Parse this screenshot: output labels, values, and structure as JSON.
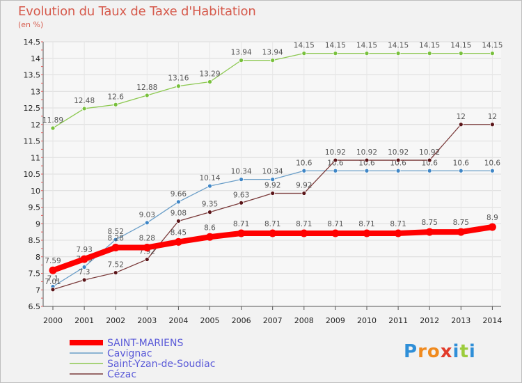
{
  "title": "Evolution du Taux de Taxe d'Habitation",
  "unit": "(en %)",
  "logo": {
    "text": "Proxiti",
    "letters": [
      "P",
      "r",
      "o",
      "x",
      "i",
      "t",
      "i"
    ],
    "colors": [
      "#2f8fd8",
      "#f08a1e",
      "#f08a1e",
      "#e23b2a",
      "#2f8fd8",
      "#9ccc3c",
      "#2f8fd8"
    ]
  },
  "chart_data": {
    "type": "line",
    "title": "Evolution du Taux de Taxe d'Habitation",
    "ylabel": "(en %)",
    "xlabel": "",
    "x": [
      "2000",
      "2001",
      "2002",
      "2003",
      "2004",
      "2005",
      "2006",
      "2007",
      "2008",
      "2009",
      "2010",
      "2011",
      "2012",
      "2013",
      "2014"
    ],
    "ylim": [
      6.5,
      14.5
    ],
    "yticks": [
      "6.5",
      "7",
      "7.5",
      "8",
      "8.5",
      "9",
      "9.5",
      "10",
      "10.5",
      "11",
      "11.5",
      "12",
      "12.5",
      "13",
      "13.5",
      "14",
      "14.5"
    ],
    "grid": true,
    "legend_position": "bottom-left",
    "series": [
      {
        "name": "Saint-Yzan-de-Soudiac",
        "color": "#8cc850",
        "marker": "#78c03c",
        "width": 1.3,
        "values": [
          11.89,
          12.48,
          12.6,
          12.88,
          13.16,
          13.29,
          13.94,
          13.94,
          14.15,
          14.15,
          14.15,
          14.15,
          14.15,
          14.15,
          14.15
        ],
        "labels": [
          "11.89",
          "12.48",
          "12.6",
          "12.88",
          "13.16",
          "13.29",
          "13.94",
          "13.94",
          "14.15",
          "14.15",
          "14.15",
          "14.15",
          "14.15",
          "14.15",
          "14.15"
        ]
      },
      {
        "name": "Cavignac",
        "color": "#6a9ec8",
        "marker": "#3f86c6",
        "width": 1.3,
        "values": [
          7.1,
          7.69,
          8.52,
          9.03,
          9.66,
          10.14,
          10.34,
          10.34,
          10.6,
          10.6,
          10.6,
          10.6,
          10.6,
          10.6,
          10.6
        ],
        "labels": [
          "7.1",
          "7.69",
          "8.52",
          "9.03",
          "9.66",
          "10.14",
          "10.34",
          "10.34",
          "10.6",
          "10.6",
          "10.6",
          "10.6",
          "10.6",
          "10.6",
          "10.6"
        ]
      },
      {
        "name": "Cézac",
        "color": "#7a3a3a",
        "marker": "#5a1418",
        "width": 1.3,
        "values": [
          7.01,
          7.3,
          7.52,
          7.92,
          9.08,
          9.35,
          9.63,
          9.92,
          9.92,
          10.92,
          10.92,
          10.92,
          10.92,
          12,
          12
        ],
        "labels": [
          "7.01",
          "7.3",
          "7.52",
          "7.92",
          "9.08",
          "9.35",
          "9.63",
          "9.92",
          "9.92",
          "10.92",
          "10.92",
          "10.92",
          "10.92",
          "12",
          "12"
        ]
      },
      {
        "name": "SAINT-MARIENS",
        "color": "#ff0000",
        "marker": "#ff0000",
        "width": 8,
        "values": [
          7.59,
          7.93,
          8.28,
          8.28,
          8.45,
          8.6,
          8.71,
          8.71,
          8.71,
          8.71,
          8.71,
          8.71,
          8.75,
          8.75,
          8.9
        ],
        "labels": [
          "7.59",
          "7.93",
          "8.28",
          "8.28",
          "8.45",
          "8.6",
          "8.71",
          "8.71",
          "8.71",
          "8.71",
          "8.71",
          "8.71",
          "8.75",
          "8.75",
          "8.9"
        ]
      }
    ],
    "legend": [
      {
        "name": "SAINT-MARIENS",
        "color": "#ff0000",
        "text_color": "#5a5ad8",
        "width": 8
      },
      {
        "name": "Cavignac",
        "color": "#6a9ec8",
        "text_color": "#5a5ad8",
        "width": 1.5
      },
      {
        "name": "Saint-Yzan-de-Soudiac",
        "color": "#8cc850",
        "text_color": "#5a5ad8",
        "width": 1.5
      },
      {
        "name": "Cézac",
        "color": "#7a3a3a",
        "text_color": "#5a5ad8",
        "width": 1.5
      }
    ]
  }
}
